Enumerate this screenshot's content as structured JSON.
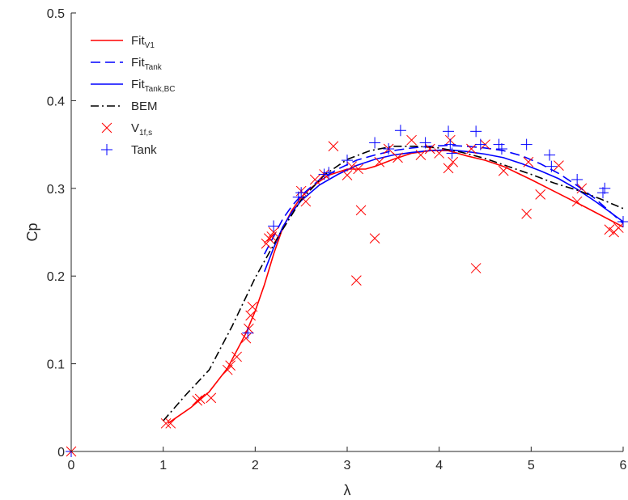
{
  "chart_data": {
    "type": "scatter",
    "xlabel": "λ",
    "ylabel": "Cp",
    "xlim": [
      0,
      6
    ],
    "ylim": [
      0,
      0.5
    ],
    "xticks": [
      "0",
      "1",
      "2",
      "3",
      "4",
      "5",
      "6"
    ],
    "yticks": [
      "0",
      "0.1",
      "0.2",
      "0.3",
      "0.4",
      "0.5"
    ],
    "grid": false,
    "legend_position": "top-left",
    "series": [
      {
        "name": "Fit",
        "name_sub": "V1",
        "kind": "line",
        "style": "solid",
        "color": "#ff0000",
        "x": [
          1.05,
          1.3,
          1.5,
          1.7,
          1.9,
          2.0,
          2.1,
          2.2,
          2.3,
          2.4,
          2.5,
          2.6,
          2.7,
          2.8,
          3.0,
          3.2,
          3.3,
          3.5,
          3.7,
          3.9,
          4.1,
          4.3,
          4.5,
          4.7,
          5.0,
          5.3,
          5.6,
          6.0
        ],
        "y": [
          0.032,
          0.05,
          0.068,
          0.095,
          0.135,
          0.16,
          0.19,
          0.225,
          0.255,
          0.275,
          0.29,
          0.3,
          0.308,
          0.315,
          0.322,
          0.322,
          0.325,
          0.333,
          0.34,
          0.343,
          0.343,
          0.337,
          0.332,
          0.325,
          0.31,
          0.294,
          0.278,
          0.256
        ]
      },
      {
        "name": "Fit",
        "name_sub": "Tank",
        "kind": "line",
        "style": "dashed",
        "color": "#0000ff",
        "x": [
          2.1,
          2.2,
          2.3,
          2.4,
          2.5,
          2.7,
          2.9,
          3.1,
          3.3,
          3.5,
          3.7,
          3.9,
          4.1,
          4.3,
          4.5,
          4.7,
          4.9,
          5.1,
          5.3,
          5.5,
          5.7,
          6.0
        ],
        "y": [
          0.225,
          0.245,
          0.265,
          0.28,
          0.292,
          0.31,
          0.322,
          0.332,
          0.338,
          0.343,
          0.346,
          0.348,
          0.349,
          0.348,
          0.346,
          0.343,
          0.337,
          0.328,
          0.317,
          0.303,
          0.288,
          0.26
        ]
      },
      {
        "name": "Fit",
        "name_sub": "Tank,BC",
        "kind": "line",
        "style": "solid",
        "color": "#0000ff",
        "x": [
          2.1,
          2.2,
          2.3,
          2.4,
          2.5,
          2.7,
          2.9,
          3.1,
          3.3,
          3.5,
          3.7,
          3.9,
          4.1,
          4.3,
          4.5,
          4.7,
          4.9,
          5.1,
          5.3,
          5.5,
          5.7,
          6.0
        ],
        "y": [
          0.205,
          0.232,
          0.256,
          0.273,
          0.286,
          0.304,
          0.316,
          0.326,
          0.333,
          0.338,
          0.341,
          0.343,
          0.344,
          0.342,
          0.339,
          0.335,
          0.328,
          0.32,
          0.311,
          0.299,
          0.285,
          0.262
        ]
      },
      {
        "name": "BEM",
        "kind": "line",
        "style": "dashdot",
        "color": "#000000",
        "x": [
          1.0,
          1.25,
          1.5,
          1.75,
          2.0,
          2.25,
          2.5,
          2.75,
          3.0,
          3.25,
          3.5,
          3.75,
          4.0,
          4.25,
          4.5,
          4.75,
          5.0,
          5.25,
          5.5,
          5.75,
          6.0
        ],
        "y": [
          0.035,
          0.065,
          0.093,
          0.143,
          0.198,
          0.245,
          0.287,
          0.315,
          0.333,
          0.343,
          0.348,
          0.348,
          0.346,
          0.341,
          0.334,
          0.325,
          0.316,
          0.306,
          0.298,
          0.288,
          0.277
        ]
      },
      {
        "name": "V",
        "name_sub": "1f,s",
        "kind": "marker",
        "marker": "x",
        "color": "#ff0000",
        "x": [
          0,
          1.03,
          1.08,
          1.37,
          1.4,
          1.52,
          1.7,
          1.73,
          1.8,
          1.9,
          1.93,
          1.95,
          1.97,
          2.12,
          2.15,
          2.18,
          2.2,
          2.5,
          2.55,
          2.65,
          2.75,
          2.85,
          3.0,
          3.05,
          3.1,
          3.12,
          3.15,
          3.3,
          3.35,
          3.45,
          3.55,
          3.7,
          3.8,
          3.9,
          4.0,
          4.1,
          4.12,
          4.15,
          4.35,
          4.4,
          4.5,
          4.7,
          4.95,
          4.97,
          5.1,
          5.3,
          5.5,
          5.55,
          5.85,
          5.9,
          5.95
        ],
        "y": [
          0,
          0.032,
          0.032,
          0.058,
          0.06,
          0.061,
          0.093,
          0.098,
          0.108,
          0.129,
          0.14,
          0.155,
          0.165,
          0.237,
          0.243,
          0.245,
          0.25,
          0.297,
          0.285,
          0.31,
          0.316,
          0.348,
          0.315,
          0.325,
          0.195,
          0.322,
          0.275,
          0.243,
          0.33,
          0.345,
          0.335,
          0.355,
          0.338,
          0.345,
          0.34,
          0.323,
          0.355,
          0.33,
          0.345,
          0.209,
          0.35,
          0.32,
          0.271,
          0.33,
          0.293,
          0.326,
          0.285,
          0.3,
          0.253,
          0.25,
          0.255
        ]
      },
      {
        "name": "Tank",
        "kind": "marker",
        "marker": "plus",
        "color": "#0000ff",
        "x": [
          0,
          1.92,
          2.2,
          2.47,
          2.5,
          2.75,
          2.8,
          3.0,
          3.3,
          3.45,
          3.58,
          3.85,
          4.1,
          4.12,
          4.14,
          4.4,
          4.45,
          4.65,
          4.68,
          4.95,
          5.2,
          5.22,
          5.5,
          5.78,
          5.8,
          6.0
        ],
        "y": [
          0,
          0.135,
          0.257,
          0.29,
          0.295,
          0.316,
          0.318,
          0.332,
          0.352,
          0.345,
          0.366,
          0.352,
          0.365,
          0.35,
          0.34,
          0.365,
          0.35,
          0.35,
          0.345,
          0.35,
          0.338,
          0.325,
          0.31,
          0.295,
          0.3,
          0.262
        ]
      }
    ]
  }
}
